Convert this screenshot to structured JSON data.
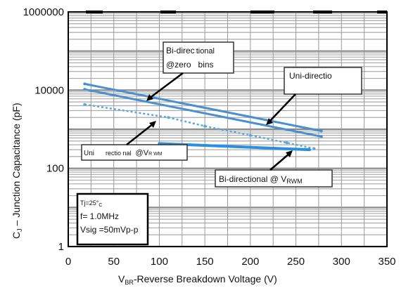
{
  "chart_data": {
    "type": "line",
    "xlabel": "V",
    "xlabel_sub": "BR",
    "xlabel_rest": "-Reverse  Breakdown Voltage (V)",
    "ylabel": "C",
    "ylabel_sub": "J",
    "ylabel_rest": " – Junction Capacitance (pF)",
    "xlim": [
      0,
      350
    ],
    "ylim": [
      1,
      1000000
    ],
    "yscale": "log",
    "x_ticks": [
      "0",
      "50",
      "100",
      "150",
      "200",
      "250",
      "300",
      "350"
    ],
    "y_ticks": [
      "1",
      "100",
      "10000",
      "1000000"
    ],
    "y_tick_values": [
      1,
      100,
      10000,
      1000000
    ],
    "grid": true,
    "series": [
      {
        "points": [
          [
            18,
            14500
          ],
          [
            278,
            900
          ]
        ],
        "color": "#4a90d0"
      },
      {
        "points": [
          [
            18,
            10500
          ],
          [
            278,
            650
          ]
        ],
        "color": "#4a90d0"
      },
      {
        "points": [
          [
            18,
            4300
          ],
          [
            110,
            2000
          ],
          [
            150,
            1200
          ],
          [
            200,
            700
          ],
          [
            240,
            450
          ],
          [
            270,
            320
          ]
        ],
        "color": "#5aa7e6"
      },
      {
        "points": [
          [
            100,
            430
          ],
          [
            265,
            300
          ]
        ],
        "color": "#2b8fe0"
      }
    ],
    "annotations": {
      "bi_zero": {
        "line1_a": "Bi-direc",
        "line1_b": "tional",
        "line2_a": "@zero",
        "line2_b": "bins"
      },
      "uni_zero": "Uni-directio",
      "uni_vrwm_a": "Uni",
      "uni_vrwm_b": "rectio nal",
      "uni_vrwm_c": "@V",
      "uni_vrwm_d": "R WM",
      "bi_vrwm_a": "Bi-dir",
      "bi_vrwm_b": "ectional @ V",
      "bi_vrwm_c": "RWM"
    },
    "conditions": {
      "tj_a": "Tj=25°",
      "tj_b": "C",
      "freq": "f= 1.0MHz",
      "vsig": "Vsig =50mVp-p"
    }
  }
}
